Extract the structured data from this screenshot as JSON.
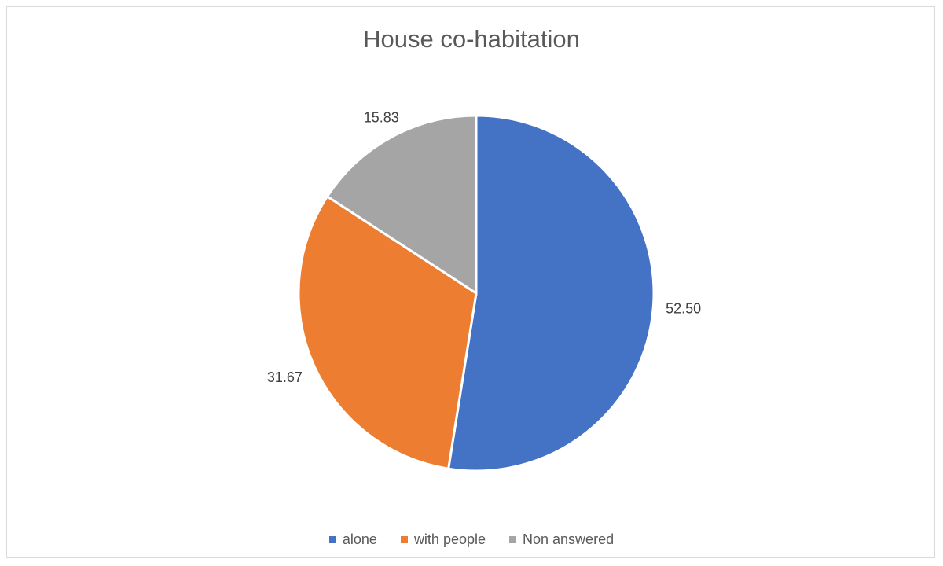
{
  "chart_data": {
    "type": "pie",
    "title": "House co-habitation",
    "categories": [
      "alone",
      "with people",
      "Non answered"
    ],
    "values": [
      52.5,
      31.67,
      15.83
    ],
    "value_labels": [
      "52.50",
      "31.67",
      "15.83"
    ],
    "colors": [
      "#4472c4",
      "#ed7d31",
      "#a5a5a5"
    ],
    "legend_position": "bottom"
  }
}
